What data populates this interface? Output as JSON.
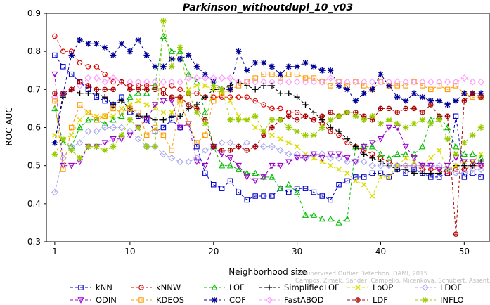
{
  "watermark": {
    "line1": "Unsupervised Outlier Detection. DAMI, 2015.",
    "line2": "Campos, Zimek, Sander, Campello, Micenkova, Schubert, Assent, Houle"
  },
  "chart_data": {
    "type": "line",
    "title": "Parkinson_withoutdupl_10_v03",
    "xlabel": "Neighborhood size",
    "ylabel": "ROC AUC",
    "xlim": [
      0,
      53
    ],
    "ylim": [
      0.3,
      0.9
    ],
    "xticks": [
      1,
      10,
      20,
      30,
      40,
      50
    ],
    "yticks": [
      0.3,
      0.4,
      0.5,
      0.6,
      0.7,
      0.8,
      0.9
    ],
    "legend_position": "bottom",
    "series": [
      {
        "name": "kNN",
        "color": "#0000cc",
        "marker": "square",
        "values": [
          0.79,
          0.76,
          0.74,
          0.72,
          0.7,
          0.68,
          0.67,
          0.66,
          0.68,
          0.64,
          0.63,
          0.62,
          0.59,
          0.6,
          0.62,
          0.6,
          0.61,
          0.55,
          0.48,
          0.45,
          0.44,
          0.46,
          0.43,
          0.41,
          0.42,
          0.42,
          0.42,
          0.44,
          0.43,
          0.44,
          0.44,
          0.43,
          0.42,
          0.41,
          0.45,
          0.46,
          0.47,
          0.47,
          0.48,
          0.48,
          0.47,
          0.49,
          0.48,
          0.49,
          0.48,
          0.47,
          0.47,
          0.48,
          0.63,
          0.47,
          0.48,
          0.47
        ]
      },
      {
        "name": "kNNW",
        "color": "#dd0000",
        "marker": "circle",
        "values": [
          0.84,
          0.8,
          0.8,
          0.77,
          0.76,
          0.76,
          0.74,
          0.72,
          0.72,
          0.71,
          0.71,
          0.71,
          0.71,
          0.7,
          0.71,
          0.7,
          0.69,
          0.69,
          0.68,
          0.68,
          0.68,
          0.68,
          0.68,
          0.68,
          0.67,
          0.66,
          0.65,
          0.65,
          0.64,
          0.64,
          0.63,
          0.62,
          0.61,
          0.59,
          0.58,
          0.56,
          0.55,
          0.54,
          0.53,
          0.52,
          0.51,
          0.5,
          0.5,
          0.5,
          0.49,
          0.49,
          0.49,
          0.48,
          0.49,
          0.49,
          0.5,
          0.5
        ]
      },
      {
        "name": "LOF",
        "color": "#00bb00",
        "marker": "triangle",
        "values": [
          0.65,
          0.56,
          0.55,
          0.6,
          0.62,
          0.62,
          0.61,
          0.62,
          0.63,
          0.68,
          0.69,
          0.69,
          0.71,
          0.84,
          0.8,
          0.8,
          0.74,
          0.72,
          0.64,
          0.55,
          0.5,
          0.5,
          0.49,
          0.48,
          0.48,
          0.47,
          0.47,
          0.44,
          0.45,
          0.43,
          0.37,
          0.37,
          0.36,
          0.36,
          0.35,
          0.36,
          0.55,
          0.55,
          0.55,
          0.53,
          0.52,
          0.53,
          0.53,
          0.53,
          0.55,
          0.62,
          0.63,
          0.6,
          0.55,
          0.53,
          0.53,
          0.52
        ]
      },
      {
        "name": "SimplifiedLOF",
        "color": "#000000",
        "marker": "plus",
        "values": [
          0.56,
          0.68,
          0.7,
          0.69,
          0.69,
          0.69,
          0.68,
          0.66,
          0.67,
          0.65,
          0.63,
          0.63,
          0.62,
          0.62,
          0.63,
          0.63,
          0.65,
          0.66,
          0.68,
          0.7,
          0.7,
          0.71,
          0.72,
          0.71,
          0.7,
          0.71,
          0.71,
          0.69,
          0.69,
          0.68,
          0.66,
          0.64,
          0.62,
          0.6,
          0.59,
          0.57,
          0.55,
          0.53,
          0.52,
          0.51,
          0.5,
          0.49,
          0.49,
          0.48,
          0.48,
          0.48,
          0.48,
          0.49,
          0.5,
          0.5,
          0.5,
          0.51
        ]
      },
      {
        "name": "LoOP",
        "color": "#dddd00",
        "marker": "x",
        "values": [
          0.58,
          0.57,
          0.58,
          0.62,
          0.64,
          0.63,
          0.63,
          0.63,
          0.65,
          0.66,
          0.67,
          0.66,
          0.65,
          0.64,
          0.64,
          0.67,
          0.7,
          0.71,
          0.71,
          0.7,
          0.69,
          0.67,
          0.63,
          0.62,
          0.6,
          0.59,
          0.58,
          0.57,
          0.56,
          0.55,
          0.53,
          0.52,
          0.51,
          0.5,
          0.49,
          0.48,
          0.46,
          0.45,
          0.42,
          0.47,
          0.47,
          0.5,
          0.52,
          0.51,
          0.5,
          0.52,
          0.54,
          0.49,
          0.5,
          0.51,
          0.51,
          0.53
        ]
      },
      {
        "name": "LDOF",
        "color": "#aaaaee",
        "marker": "diamond",
        "values": [
          0.43,
          0.52,
          0.55,
          0.56,
          0.59,
          0.59,
          0.6,
          0.6,
          0.6,
          0.59,
          0.57,
          0.55,
          0.55,
          0.53,
          0.52,
          0.51,
          0.51,
          0.52,
          0.54,
          0.55,
          0.56,
          0.56,
          0.55,
          0.56,
          0.55,
          0.55,
          0.55,
          0.54,
          0.53,
          0.53,
          0.52,
          0.53,
          0.53,
          0.52,
          0.52,
          0.51,
          0.51,
          0.51,
          0.5,
          0.5,
          0.5,
          0.5,
          0.5,
          0.5,
          0.5,
          0.5,
          0.5,
          0.49,
          0.48,
          0.48,
          0.49,
          0.49
        ]
      },
      {
        "name": "ODIN",
        "color": "#9900cc",
        "marker": "triangle-down",
        "values": [
          0.74,
          0.5,
          0.5,
          0.51,
          0.55,
          0.55,
          0.56,
          0.57,
          0.57,
          0.58,
          0.6,
          0.62,
          0.66,
          0.67,
          0.67,
          0.6,
          0.61,
          0.51,
          0.5,
          0.55,
          0.53,
          0.52,
          0.5,
          0.47,
          0.46,
          0.47,
          0.5,
          0.5,
          0.51,
          0.52,
          0.52,
          0.53,
          0.52,
          0.53,
          0.53,
          0.52,
          0.51,
          0.55,
          0.56,
          0.57,
          0.6,
          0.6,
          0.55,
          0.52,
          0.5,
          0.5,
          0.49,
          0.5,
          0.52,
          0.51,
          0.51,
          0.5
        ]
      },
      {
        "name": "KDEOS",
        "color": "#ff9900",
        "marker": "square",
        "values": [
          0.67,
          0.49,
          0.6,
          0.66,
          0.64,
          0.62,
          0.63,
          0.65,
          0.64,
          0.65,
          0.64,
          0.58,
          0.6,
          0.58,
          0.54,
          0.67,
          0.61,
          0.56,
          0.58,
          0.67,
          0.69,
          0.7,
          0.71,
          0.72,
          0.73,
          0.74,
          0.74,
          0.73,
          0.74,
          0.74,
          0.73,
          0.73,
          0.72,
          0.71,
          0.72,
          0.71,
          0.72,
          0.71,
          0.7,
          0.72,
          0.71,
          0.71,
          0.71,
          0.72,
          0.71,
          0.7,
          0.71,
          0.7,
          0.71,
          0.69,
          0.68,
          0.68
        ]
      },
      {
        "name": "COF",
        "color": "#000099",
        "marker": "star",
        "values": [
          0.56,
          0.69,
          0.79,
          0.83,
          0.82,
          0.82,
          0.81,
          0.79,
          0.82,
          0.8,
          0.83,
          0.79,
          0.76,
          0.76,
          0.78,
          0.78,
          0.79,
          0.76,
          0.74,
          0.72,
          0.7,
          0.7,
          0.8,
          0.75,
          0.77,
          0.77,
          0.76,
          0.74,
          0.76,
          0.76,
          0.77,
          0.76,
          0.75,
          0.75,
          0.71,
          0.7,
          0.67,
          0.69,
          0.7,
          0.74,
          0.71,
          0.68,
          0.67,
          0.69,
          0.68,
          0.67,
          0.67,
          0.66,
          0.67,
          0.69,
          0.69,
          0.69
        ]
      },
      {
        "name": "FastABOD",
        "color": "#ff99ff",
        "marker": "diamond",
        "values": [
          0.68,
          0.69,
          0.7,
          0.71,
          0.73,
          0.73,
          0.72,
          0.73,
          0.72,
          0.72,
          0.72,
          0.72,
          0.72,
          0.72,
          0.72,
          0.72,
          0.73,
          0.73,
          0.73,
          0.73,
          0.73,
          0.73,
          0.72,
          0.72,
          0.72,
          0.72,
          0.72,
          0.72,
          0.72,
          0.72,
          0.72,
          0.72,
          0.72,
          0.73,
          0.72,
          0.72,
          0.72,
          0.72,
          0.72,
          0.72,
          0.72,
          0.72,
          0.72,
          0.72,
          0.72,
          0.72,
          0.72,
          0.72,
          0.72,
          0.73,
          0.72,
          0.72
        ]
      },
      {
        "name": "LDF",
        "color": "#aa0000",
        "marker": "circle-plus",
        "values": [
          0.69,
          0.69,
          0.7,
          0.72,
          0.71,
          0.7,
          0.7,
          0.7,
          0.72,
          0.7,
          0.7,
          0.7,
          0.7,
          0.69,
          0.68,
          0.68,
          0.66,
          0.65,
          0.62,
          0.55,
          0.54,
          0.54,
          0.55,
          0.54,
          0.55,
          0.58,
          0.6,
          0.62,
          0.63,
          0.62,
          0.63,
          0.62,
          0.63,
          0.64,
          0.63,
          0.64,
          0.64,
          0.63,
          0.62,
          0.65,
          0.65,
          0.64,
          0.65,
          0.65,
          0.64,
          0.66,
          0.63,
          0.63,
          0.32,
          0.67,
          0.69,
          0.68
        ]
      },
      {
        "name": "INFLO",
        "color": "#99cc00",
        "marker": "star",
        "values": [
          0.53,
          0.57,
          0.54,
          0.52,
          0.55,
          0.55,
          0.54,
          0.55,
          0.58,
          0.62,
          0.6,
          0.55,
          0.55,
          0.88,
          0.76,
          0.81,
          0.69,
          0.64,
          0.61,
          0.71,
          0.7,
          0.62,
          0.62,
          0.62,
          0.63,
          0.59,
          0.62,
          0.62,
          0.6,
          0.59,
          0.58,
          0.58,
          0.6,
          0.62,
          0.63,
          0.64,
          0.63,
          0.62,
          0.63,
          0.61,
          0.62,
          0.61,
          0.6,
          0.61,
          0.62,
          0.61,
          0.62,
          0.57,
          0.53,
          0.56,
          0.58,
          0.6
        ]
      }
    ]
  }
}
